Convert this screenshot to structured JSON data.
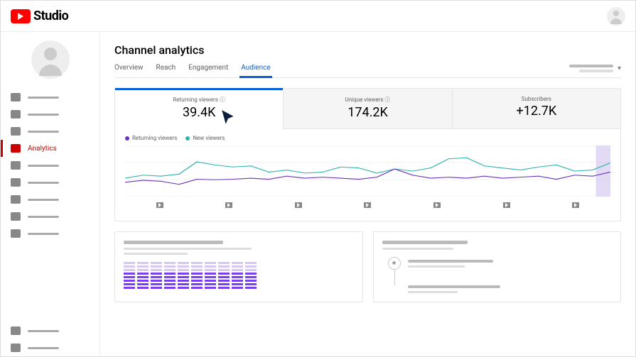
{
  "app": {
    "name": "Studio"
  },
  "page": {
    "title": "Channel analytics"
  },
  "tabs": {
    "overview": "Overview",
    "reach": "Reach",
    "engagement": "Engagement",
    "audience": "Audience",
    "active_index": 3
  },
  "sidebar": {
    "analytics_label": "Analytics",
    "active_index": 3
  },
  "kpis": {
    "returning": {
      "label": "Returning viewers",
      "value": "39.4K"
    },
    "unique": {
      "label": "Unique viewers",
      "value": "174.2K"
    },
    "subs": {
      "label": "Subscribers",
      "value": "+12.7K"
    },
    "selected_index": 0
  },
  "chart": {
    "type": "line",
    "legend": {
      "returning": "Returning viewers",
      "new": "New viewers"
    },
    "series": {
      "returning": {
        "color": "#6a33b9",
        "points": [
          28,
          32,
          30,
          24,
          34,
          33,
          34,
          36,
          34,
          40,
          36,
          38,
          36,
          34,
          38,
          54,
          42,
          36,
          38,
          36,
          40,
          36,
          38,
          40,
          34,
          42,
          40,
          48
        ]
      },
      "new": {
        "color": "#2fb4b0",
        "points": [
          36,
          42,
          40,
          44,
          68,
          62,
          58,
          60,
          48,
          52,
          46,
          48,
          58,
          56,
          46,
          54,
          50,
          56,
          74,
          76,
          60,
          56,
          52,
          58,
          62,
          50,
          52,
          66
        ]
      }
    },
    "ylim": [
      0,
      100
    ],
    "grid_color": "#eeeeee",
    "background_color": "#ffffff",
    "highlight_band": {
      "start_pct": 97,
      "width_pct": 3,
      "fill": "#b9a4e6",
      "pattern": "hatch"
    },
    "x_markers": 7
  },
  "bottom": {
    "heatmap": {
      "type": "heatmap_bars",
      "columns": 10,
      "segments_per_column": 8,
      "color_dark": "#7b3ff2",
      "color_light": "#d8c7f5",
      "fade_rows": 3
    }
  },
  "colors": {
    "brand_red": "#ff0000",
    "accent_blue": "#065fd4"
  }
}
